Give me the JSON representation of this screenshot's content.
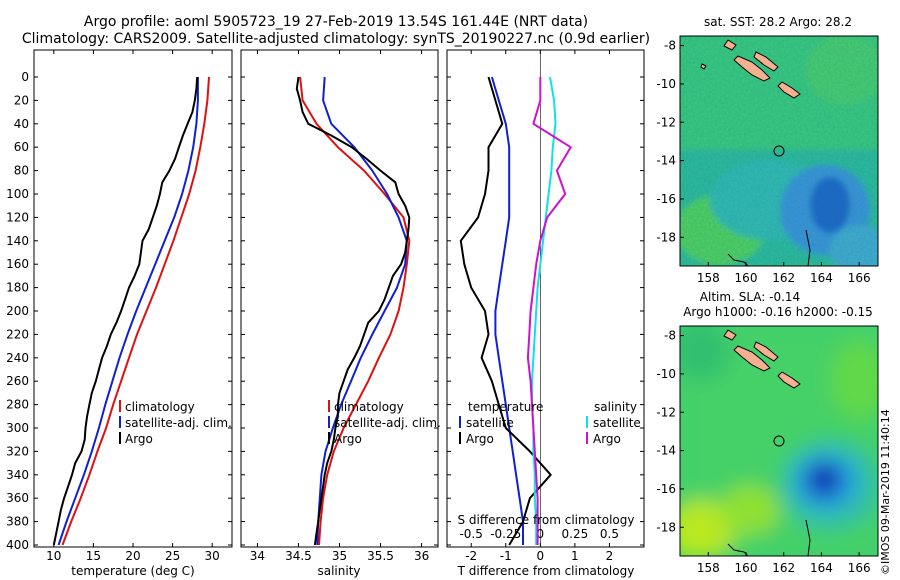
{
  "title_line1": "Argo profile: aoml 5905723_19 27-Feb-2019 13.54S 161.44E (NRT data)",
  "title_line2": "Climatology: CARS2009. Satellite-adjusted climatology: synTS_20190227.nc (0.9d earlier)",
  "colors": {
    "climatology": "#e01010",
    "satellite": "#1020d0",
    "argo": "#000000",
    "cyan": "#10e0e8",
    "magenta": "#d010d0"
  },
  "depth_ticks": [
    "0",
    "20",
    "40",
    "60",
    "80",
    "100",
    "120",
    "140",
    "160",
    "180",
    "200",
    "220",
    "240",
    "260",
    "280",
    "300",
    "320",
    "340",
    "360",
    "380",
    "400"
  ],
  "chart_data": [
    {
      "type": "line",
      "name": "temperature",
      "xlabel": "temperature (deg C)",
      "xticks": [
        "10",
        "15",
        "20",
        "25",
        "30"
      ],
      "xlim": [
        7.5,
        32.5
      ],
      "ylim": [
        0,
        400
      ],
      "legend": [
        "climatology",
        "satellite-adj. clim.",
        "Argo"
      ],
      "series": [
        {
          "name": "climatology",
          "color": "#e01010",
          "depth": [
            0,
            20,
            40,
            60,
            80,
            100,
            120,
            140,
            160,
            180,
            200,
            220,
            240,
            260,
            280,
            300,
            320,
            340,
            360,
            380,
            400
          ],
          "values": [
            29.6,
            29.4,
            29.0,
            28.5,
            27.9,
            27.1,
            26.1,
            25.1,
            24.0,
            22.9,
            21.7,
            20.5,
            19.5,
            18.5,
            17.5,
            16.6,
            15.5,
            14.5,
            13.4,
            12.2,
            11.1
          ]
        },
        {
          "name": "satellite-adj. clim.",
          "color": "#1020d0",
          "depth": [
            0,
            20,
            40,
            60,
            80,
            100,
            120,
            140,
            160,
            180,
            200,
            220,
            240,
            260,
            280,
            300,
            320,
            340,
            360,
            380,
            400
          ],
          "values": [
            28.2,
            28.2,
            28.0,
            27.6,
            27.0,
            26.2,
            25.2,
            24.0,
            22.8,
            21.6,
            20.4,
            19.3,
            18.3,
            17.4,
            16.5,
            15.7,
            14.8,
            13.8,
            12.7,
            11.6,
            10.6
          ]
        },
        {
          "name": "Argo",
          "color": "#000000",
          "depth": [
            0,
            10,
            20,
            30,
            40,
            50,
            60,
            70,
            80,
            90,
            100,
            110,
            120,
            130,
            140,
            150,
            160,
            170,
            180,
            190,
            200,
            210,
            220,
            230,
            240,
            250,
            260,
            270,
            280,
            290,
            300,
            310,
            320,
            330,
            340,
            350,
            360,
            370,
            380,
            390,
            400
          ],
          "values": [
            28.1,
            28.0,
            27.8,
            27.5,
            26.9,
            26.3,
            25.8,
            25.3,
            24.6,
            23.7,
            23.4,
            23.0,
            22.5,
            22.0,
            21.2,
            21.0,
            20.8,
            20.2,
            19.5,
            19.0,
            18.5,
            17.9,
            17.2,
            16.7,
            16.1,
            15.7,
            15.3,
            14.8,
            14.5,
            14.2,
            14.0,
            13.9,
            13.5,
            12.7,
            12.3,
            11.8,
            11.3,
            10.9,
            10.6,
            10.3,
            10.0
          ]
        }
      ]
    },
    {
      "type": "line",
      "name": "salinity",
      "xlabel": "salinity",
      "xticks": [
        "34",
        "34.5",
        "35",
        "35.5",
        "36"
      ],
      "xlim": [
        33.8,
        36.2
      ],
      "ylim": [
        0,
        400
      ],
      "legend": [
        "climatology",
        "satellite-adj. clim.",
        "Argo"
      ],
      "series": [
        {
          "name": "climatology",
          "color": "#e01010",
          "depth": [
            0,
            20,
            40,
            60,
            80,
            100,
            120,
            140,
            160,
            180,
            200,
            220,
            240,
            260,
            280,
            300,
            320,
            340,
            360,
            380,
            400
          ],
          "values": [
            34.52,
            34.55,
            34.72,
            34.98,
            35.3,
            35.55,
            35.78,
            35.85,
            35.82,
            35.78,
            35.72,
            35.62,
            35.48,
            35.35,
            35.2,
            35.05,
            34.93,
            34.85,
            34.8,
            34.77,
            34.75
          ]
        },
        {
          "name": "satellite-adj. clim.",
          "color": "#1020d0",
          "depth": [
            0,
            20,
            40,
            60,
            80,
            100,
            120,
            140,
            160,
            180,
            200,
            220,
            240,
            260,
            280,
            300,
            320,
            340,
            360,
            380,
            400
          ],
          "values": [
            34.82,
            34.8,
            34.9,
            35.18,
            35.4,
            35.58,
            35.72,
            35.82,
            35.8,
            35.7,
            35.55,
            35.4,
            35.26,
            35.14,
            35.02,
            34.92,
            34.83,
            34.78,
            34.76,
            34.74,
            34.73
          ]
        },
        {
          "name": "Argo",
          "color": "#000000",
          "depth": [
            0,
            10,
            20,
            30,
            40,
            50,
            60,
            70,
            80,
            90,
            100,
            110,
            120,
            130,
            140,
            150,
            160,
            170,
            180,
            190,
            200,
            210,
            220,
            230,
            240,
            250,
            260,
            270,
            280,
            290,
            300,
            310,
            320,
            330,
            340,
            350,
            360,
            370,
            380,
            390,
            400
          ],
          "values": [
            34.5,
            34.48,
            34.52,
            34.55,
            34.62,
            34.9,
            35.15,
            35.33,
            35.5,
            35.68,
            35.72,
            35.8,
            35.85,
            35.84,
            35.82,
            35.8,
            35.75,
            35.65,
            35.6,
            35.55,
            35.48,
            35.35,
            35.3,
            35.25,
            35.18,
            35.1,
            35.05,
            35.0,
            34.98,
            34.98,
            34.95,
            34.93,
            34.9,
            34.85,
            34.82,
            34.8,
            34.78,
            34.76,
            34.74,
            34.72,
            34.7
          ]
        }
      ]
    },
    {
      "type": "line",
      "name": "differences",
      "xlabel": "T difference from climatology",
      "top_axis_label": "S difference from climatology",
      "xticks": [
        "-2",
        "-1",
        "0",
        "1",
        "2"
      ],
      "xlim": [
        -2.7,
        3.0
      ],
      "top_xticks": [
        "-0.5",
        "-0.25",
        "0",
        "0.25",
        "0.5"
      ],
      "ylim": [
        0,
        400
      ],
      "legend_left_title": "temperature",
      "legend_right_title": "salinity",
      "legend": [
        "satellite",
        "Argo"
      ],
      "series": [
        {
          "name": "T satellite",
          "color": "#1020d0",
          "depth": [
            0,
            20,
            40,
            60,
            80,
            100,
            120,
            140,
            160,
            180,
            200,
            220,
            240,
            260,
            280,
            300,
            320,
            340,
            360,
            380,
            400
          ],
          "values": [
            -1.4,
            -1.2,
            -1.0,
            -0.9,
            -0.9,
            -0.9,
            -0.9,
            -1.0,
            -1.1,
            -1.2,
            -1.3,
            -1.3,
            -1.2,
            -1.1,
            -1.0,
            -0.9,
            -0.8,
            -0.7,
            -0.6,
            -0.5,
            -0.5
          ]
        },
        {
          "name": "T Argo",
          "color": "#000000",
          "depth": [
            0,
            20,
            40,
            60,
            80,
            100,
            120,
            140,
            160,
            180,
            200,
            220,
            240,
            260,
            280,
            300,
            320,
            340,
            360,
            380,
            400
          ],
          "values": [
            -1.5,
            -1.3,
            -1.1,
            -1.5,
            -1.5,
            -1.6,
            -1.8,
            -2.3,
            -2.2,
            -2.0,
            -1.6,
            -1.5,
            -1.7,
            -1.4,
            -1.2,
            -1.0,
            -0.3,
            0.3,
            -0.3,
            -0.5,
            -0.9
          ]
        },
        {
          "name": "S satellite",
          "color": "#10e0e8",
          "depth": [
            0,
            20,
            40,
            60,
            80,
            100,
            120,
            140,
            160,
            180,
            200,
            220,
            240,
            260,
            280,
            300,
            320,
            340,
            360,
            380,
            400
          ],
          "values": [
            0.07,
            0.1,
            0.11,
            0.09,
            0.08,
            0.06,
            0.04,
            0.02,
            0.0,
            -0.02,
            -0.03,
            -0.04,
            -0.05,
            -0.06,
            -0.06,
            -0.05,
            -0.05,
            -0.04,
            -0.04,
            -0.03,
            -0.03
          ]
        },
        {
          "name": "S Argo",
          "color": "#d010d0",
          "depth": [
            0,
            20,
            40,
            60,
            80,
            100,
            120,
            140,
            160,
            180,
            200,
            220,
            240,
            260,
            280,
            300,
            320,
            340,
            360,
            380,
            400
          ],
          "values": [
            0.0,
            0.0,
            -0.05,
            0.22,
            0.12,
            0.18,
            0.05,
            0.0,
            -0.03,
            -0.05,
            -0.07,
            -0.08,
            -0.09,
            -0.07,
            -0.06,
            -0.05,
            -0.04,
            -0.03,
            -0.02,
            -0.02,
            -0.02
          ]
        }
      ]
    }
  ],
  "map_top": {
    "title": "sat. SST: 28.2 Argo: 28.2",
    "lon_ticks": [
      "158",
      "160",
      "162",
      "164",
      "166"
    ],
    "lat_ticks": [
      "-8",
      "-10",
      "-12",
      "-14",
      "-16",
      "-18"
    ]
  },
  "map_bottom": {
    "title_line1": "Altim. SLA: -0.14",
    "title_line2": "Argo h1000: -0.16 h2000: -0.15",
    "lon_ticks": [
      "158",
      "160",
      "162",
      "164",
      "166"
    ],
    "lat_ticks": [
      "-8",
      "-10",
      "-12",
      "-14",
      "-16",
      "-18"
    ]
  },
  "credit": "©IMOS 09-Mar-2019 11:40:14"
}
